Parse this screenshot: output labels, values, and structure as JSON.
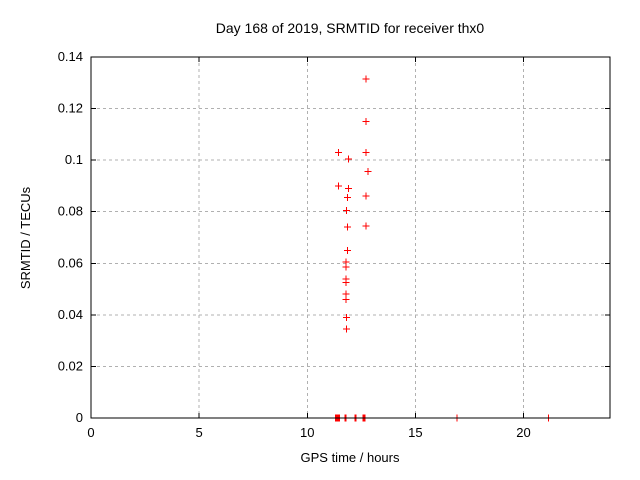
{
  "window": {
    "background": "#ffffff"
  },
  "chart_data": {
    "type": "scatter",
    "title": "Day 168 of 2019, SRMTID for receiver thx0",
    "xlabel": "GPS time / hours",
    "ylabel": "SRMTID / TECUs",
    "xlim": [
      0,
      24
    ],
    "ylim": [
      0,
      0.14
    ],
    "xticks": [
      0,
      5,
      10,
      15,
      20
    ],
    "xtick_labels": [
      "0",
      "5",
      "10",
      "15",
      "20"
    ],
    "yticks": [
      0,
      0.02,
      0.04,
      0.06,
      0.08,
      0.1,
      0.12,
      0.14
    ],
    "ytick_labels": [
      "0",
      "0.02",
      "0.04",
      "0.06",
      "0.08",
      "0.1",
      "0.12",
      "0.14"
    ],
    "grid": true,
    "legend": "none",
    "marker": "plus",
    "marker_color": "#ff0000",
    "grid_color": "#b0b0b0",
    "border_color": "#000000",
    "series": [
      {
        "name": "SRMTID",
        "points": [
          [
            12.72,
            0.1315
          ],
          [
            12.72,
            0.115
          ],
          [
            11.45,
            0.103
          ],
          [
            12.72,
            0.103
          ],
          [
            11.9,
            0.1005
          ],
          [
            12.81,
            0.0955
          ],
          [
            11.45,
            0.09
          ],
          [
            11.9,
            0.089
          ],
          [
            12.72,
            0.086
          ],
          [
            11.85,
            0.0855
          ],
          [
            11.82,
            0.0805
          ],
          [
            12.72,
            0.0745
          ],
          [
            11.85,
            0.074
          ],
          [
            11.85,
            0.065
          ],
          [
            11.79,
            0.0605
          ],
          [
            11.79,
            0.0585
          ],
          [
            11.79,
            0.054
          ],
          [
            11.79,
            0.0525
          ],
          [
            11.79,
            0.048
          ],
          [
            11.79,
            0.046
          ],
          [
            11.82,
            0.039
          ],
          [
            11.82,
            0.0345
          ],
          [
            11.3,
            0.0
          ],
          [
            11.35,
            0.0
          ],
          [
            11.4,
            0.0
          ],
          [
            11.45,
            0.0
          ],
          [
            11.5,
            0.0
          ],
          [
            11.74,
            0.0
          ],
          [
            11.79,
            0.0
          ],
          [
            12.2,
            0.0
          ],
          [
            12.25,
            0.0
          ],
          [
            12.58,
            0.0
          ],
          [
            12.63,
            0.0
          ],
          [
            12.68,
            0.0
          ],
          [
            16.92,
            0.0
          ],
          [
            21.16,
            0.0
          ]
        ]
      }
    ]
  }
}
